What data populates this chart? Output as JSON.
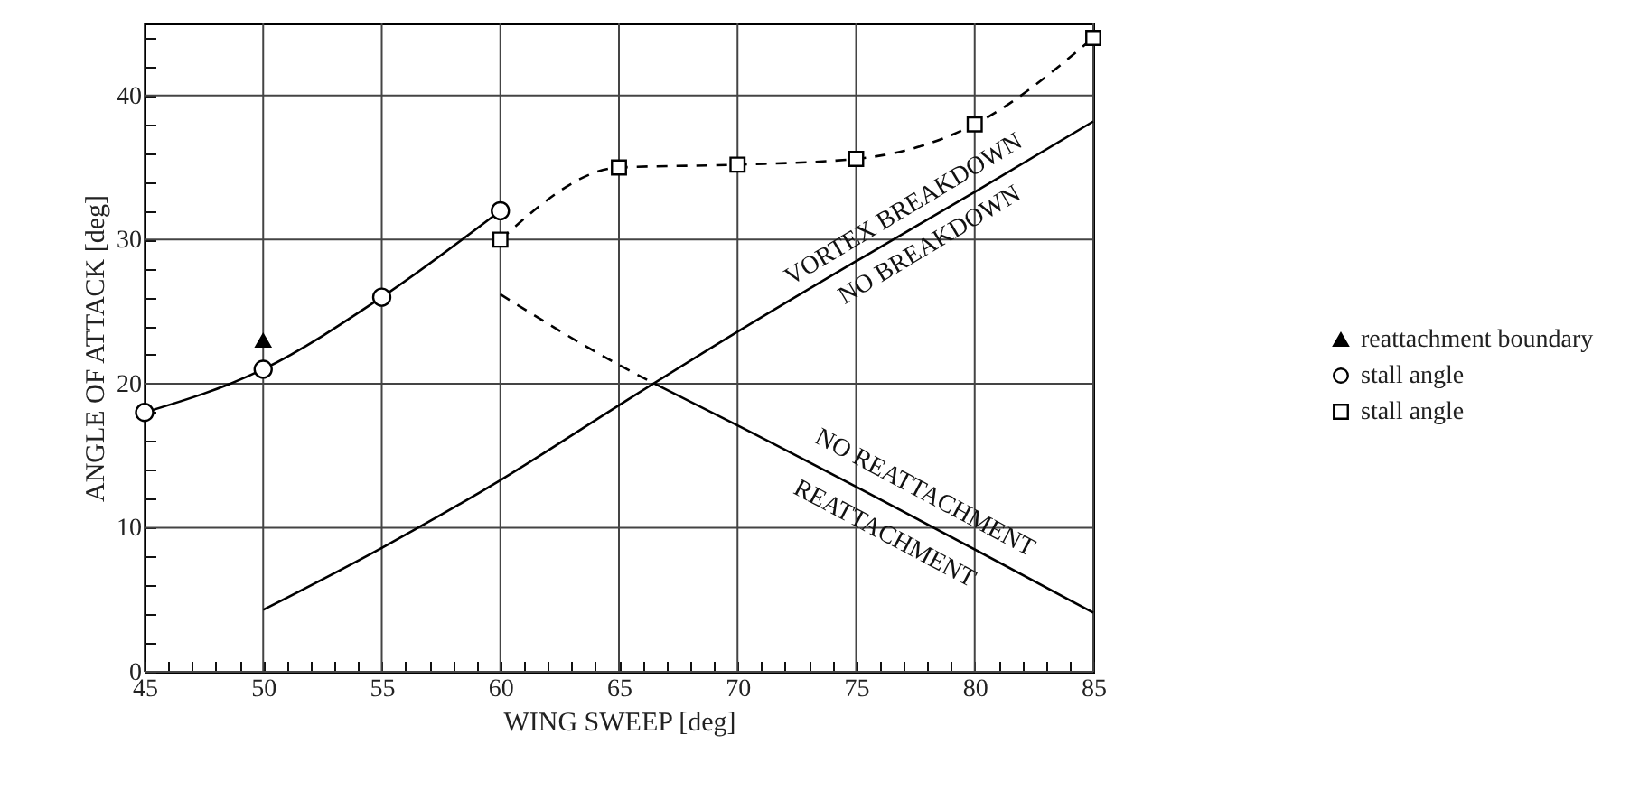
{
  "chart_data": {
    "type": "line",
    "xlabel": "WING SWEEP [deg]",
    "ylabel": "ANGLE OF ATTACK [deg]",
    "xlim": [
      45,
      85
    ],
    "ylim": [
      0,
      45
    ],
    "xticks": [
      45,
      {
        "value": 46,
        "label": null
      },
      {
        "value": 47,
        "label": null
      },
      {
        "value": 48,
        "label": null
      },
      {
        "value": 49,
        "label": null
      },
      50,
      {
        "value": 51,
        "label": null
      },
      {
        "value": 52,
        "label": null
      },
      {
        "value": 53,
        "label": null
      },
      {
        "value": 54,
        "label": null
      },
      55,
      {
        "value": 56,
        "label": null
      },
      {
        "value": 57,
        "label": null
      },
      {
        "value": 58,
        "label": null
      },
      {
        "value": 59,
        "label": null
      },
      60,
      {
        "value": 61,
        "label": null
      },
      {
        "value": 62,
        "label": null
      },
      {
        "value": 63,
        "label": null
      },
      {
        "value": 64,
        "label": null
      },
      65,
      {
        "value": 66,
        "label": null
      },
      {
        "value": 67,
        "label": null
      },
      {
        "value": 68,
        "label": null
      },
      {
        "value": 69,
        "label": null
      },
      70,
      {
        "value": 71,
        "label": null
      },
      {
        "value": 72,
        "label": null
      },
      {
        "value": 73,
        "label": null
      },
      {
        "value": 74,
        "label": null
      },
      75,
      {
        "value": 76,
        "label": null
      },
      {
        "value": 77,
        "label": null
      },
      {
        "value": 78,
        "label": null
      },
      {
        "value": 79,
        "label": null
      },
      80,
      {
        "value": 81,
        "label": null
      },
      {
        "value": 82,
        "label": null
      },
      {
        "value": 83,
        "label": null
      },
      {
        "value": 84,
        "label": null
      },
      85
    ],
    "yticks": [
      0,
      {
        "value": 2,
        "label": null
      },
      {
        "value": 4,
        "label": null
      },
      {
        "value": 6,
        "label": null
      },
      {
        "value": 8,
        "label": null
      },
      10,
      {
        "value": 12,
        "label": null
      },
      {
        "value": 14,
        "label": null
      },
      {
        "value": 16,
        "label": null
      },
      {
        "value": 18,
        "label": null
      },
      20,
      {
        "value": 22,
        "label": null
      },
      {
        "value": 24,
        "label": null
      },
      {
        "value": 26,
        "label": null
      },
      {
        "value": 28,
        "label": null
      },
      30,
      {
        "value": 32,
        "label": null
      },
      {
        "value": 34,
        "label": null
      },
      {
        "value": 36,
        "label": null
      },
      {
        "value": 38,
        "label": null
      },
      40,
      {
        "value": 42,
        "label": null
      },
      {
        "value": 44,
        "label": null
      }
    ],
    "grid": true,
    "legend": "right",
    "series": [
      {
        "name": "reattachment boundary",
        "type": "scatter",
        "marker": "triangle",
        "color": "#000000",
        "x": [
          50
        ],
        "values": [
          23
        ]
      },
      {
        "name": "stall angle",
        "marker": "circle",
        "line_style": "solid",
        "color": "#000000",
        "x": [
          45,
          50,
          55,
          60
        ],
        "values": [
          18,
          21,
          26,
          32
        ]
      },
      {
        "name": "stall angle",
        "marker": "square",
        "line_style": "dashed",
        "color": "#000000",
        "x": [
          60,
          65,
          70,
          75,
          80,
          85
        ],
        "values": [
          30,
          35,
          35.2,
          35.6,
          38,
          44
        ]
      },
      {
        "marker": "none",
        "line_style": "solid",
        "color": "#000000",
        "x": [
          50,
          55,
          60,
          65,
          70,
          75,
          80,
          85
        ],
        "values": [
          4.3,
          8.6,
          13.3,
          18.5,
          23.6,
          28.5,
          33.3,
          38.2
        ]
      },
      {
        "marker": "none",
        "line_style": "dashed",
        "color": "#000000",
        "x": [
          60,
          65,
          66.5
        ],
        "values": [
          26.2,
          21.3,
          20
        ]
      },
      {
        "marker": "none",
        "line_style": "solid",
        "color": "#000000",
        "x": [
          66.5,
          70,
          85
        ],
        "values": [
          20,
          17.1,
          4.1
        ]
      }
    ],
    "annotations": [
      "VORTEX BREAKDOWN",
      "NO BREAKDOWN",
      "NO REATTACHMENT",
      "REATTACHMENT"
    ]
  }
}
